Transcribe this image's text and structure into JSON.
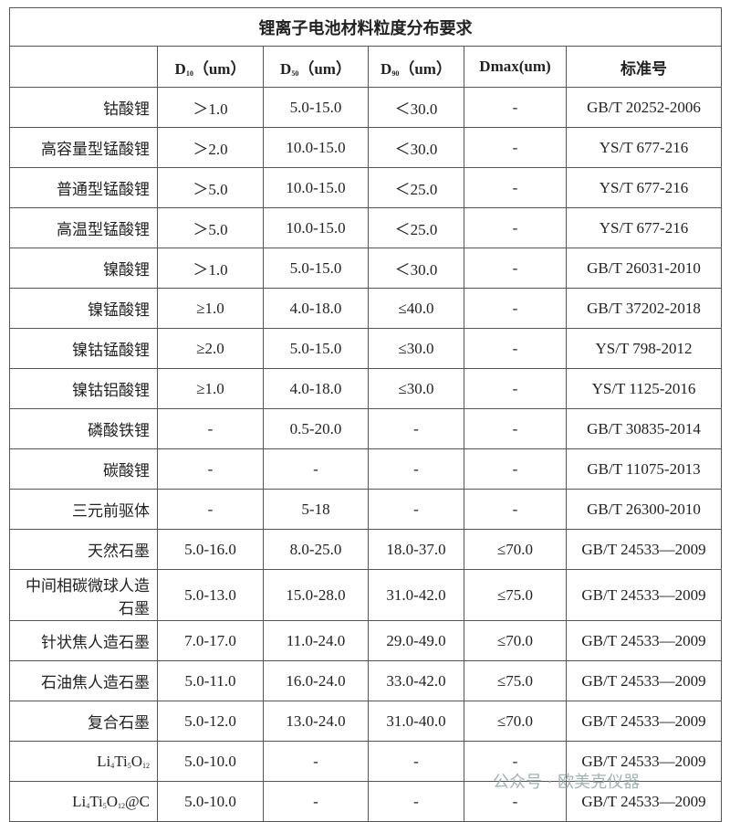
{
  "table": {
    "title": "锂离子电池材料粒度分布要求",
    "header": [
      [
        "D",
        "10",
        "（um）"
      ],
      [
        "D",
        "50",
        "（um）"
      ],
      [
        "D",
        "90",
        "（um）"
      ],
      "Dmax(um)",
      "标准号"
    ],
    "rows": [
      [
        "钴酸锂",
        "＞1.0",
        "5.0-15.0",
        "＜30.0",
        "-",
        "GB/T 20252-2006"
      ],
      [
        "高容量型锰酸锂",
        "＞2.0",
        "10.0-15.0",
        "＜30.0",
        "-",
        "YS/T 677-216"
      ],
      [
        "普通型锰酸锂",
        "＞5.0",
        "10.0-15.0",
        "＜25.0",
        "-",
        "YS/T 677-216"
      ],
      [
        "高温型锰酸锂",
        "＞5.0",
        "10.0-15.0",
        "＜25.0",
        "-",
        "YS/T 677-216"
      ],
      [
        "镍酸锂",
        "＞1.0",
        "5.0-15.0",
        "＜30.0",
        "-",
        "GB/T 26031-2010"
      ],
      [
        "镍锰酸锂",
        "≥1.0",
        "4.0-18.0",
        "≤40.0",
        "-",
        "GB/T 37202-2018"
      ],
      [
        "镍钴锰酸锂",
        "≥2.0",
        "5.0-15.0",
        "≤30.0",
        "-",
        "YS/T 798-2012"
      ],
      [
        "镍钴铝酸锂",
        "≥1.0",
        "4.0-18.0",
        "≤30.0",
        "-",
        "YS/T 1125-2016"
      ],
      [
        "磷酸铁锂",
        "-",
        "0.5-20.0",
        "-",
        "-",
        "GB/T 30835-2014"
      ],
      [
        "碳酸锂",
        "-",
        "-",
        "-",
        "-",
        "GB/T 11075-2013"
      ],
      [
        "三元前驱体",
        "-",
        "5-18",
        "-",
        "-",
        "GB/T 26300-2010"
      ],
      [
        "天然石墨",
        "5.0-16.0",
        "8.0-25.0",
        "18.0-37.0",
        "≤70.0",
        "GB/T 24533—2009"
      ],
      [
        "中间相碳微球人造石墨",
        "5.0-13.0",
        "15.0-28.0",
        "31.0-42.0",
        "≤75.0",
        "GB/T 24533—2009"
      ],
      [
        "针状焦人造石墨",
        "7.0-17.0",
        "11.0-24.0",
        "29.0-49.0",
        "≤70.0",
        "GB/T 24533—2009"
      ],
      [
        "石油焦人造石墨",
        "5.0-11.0",
        "16.0-24.0",
        "33.0-42.0",
        "≤75.0",
        "GB/T 24533—2009"
      ],
      [
        "复合石墨",
        "5.0-12.0",
        "13.0-24.0",
        "31.0-40.0",
        "≤70.0",
        "GB/T 24533—2009"
      ],
      [
        [
          "Li",
          "4",
          "Ti",
          "5",
          "O",
          "12"
        ],
        "5.0-10.0",
        "-",
        "-",
        "-",
        "GB/T 24533—2009"
      ],
      [
        [
          "Li",
          "4",
          "Ti",
          "5",
          "O",
          "12",
          "@C"
        ],
        "5.0-10.0",
        "-",
        "-",
        "-",
        "GB/T 24533—2009"
      ]
    ]
  },
  "watermark": "公众号 · 欧美克仪器"
}
